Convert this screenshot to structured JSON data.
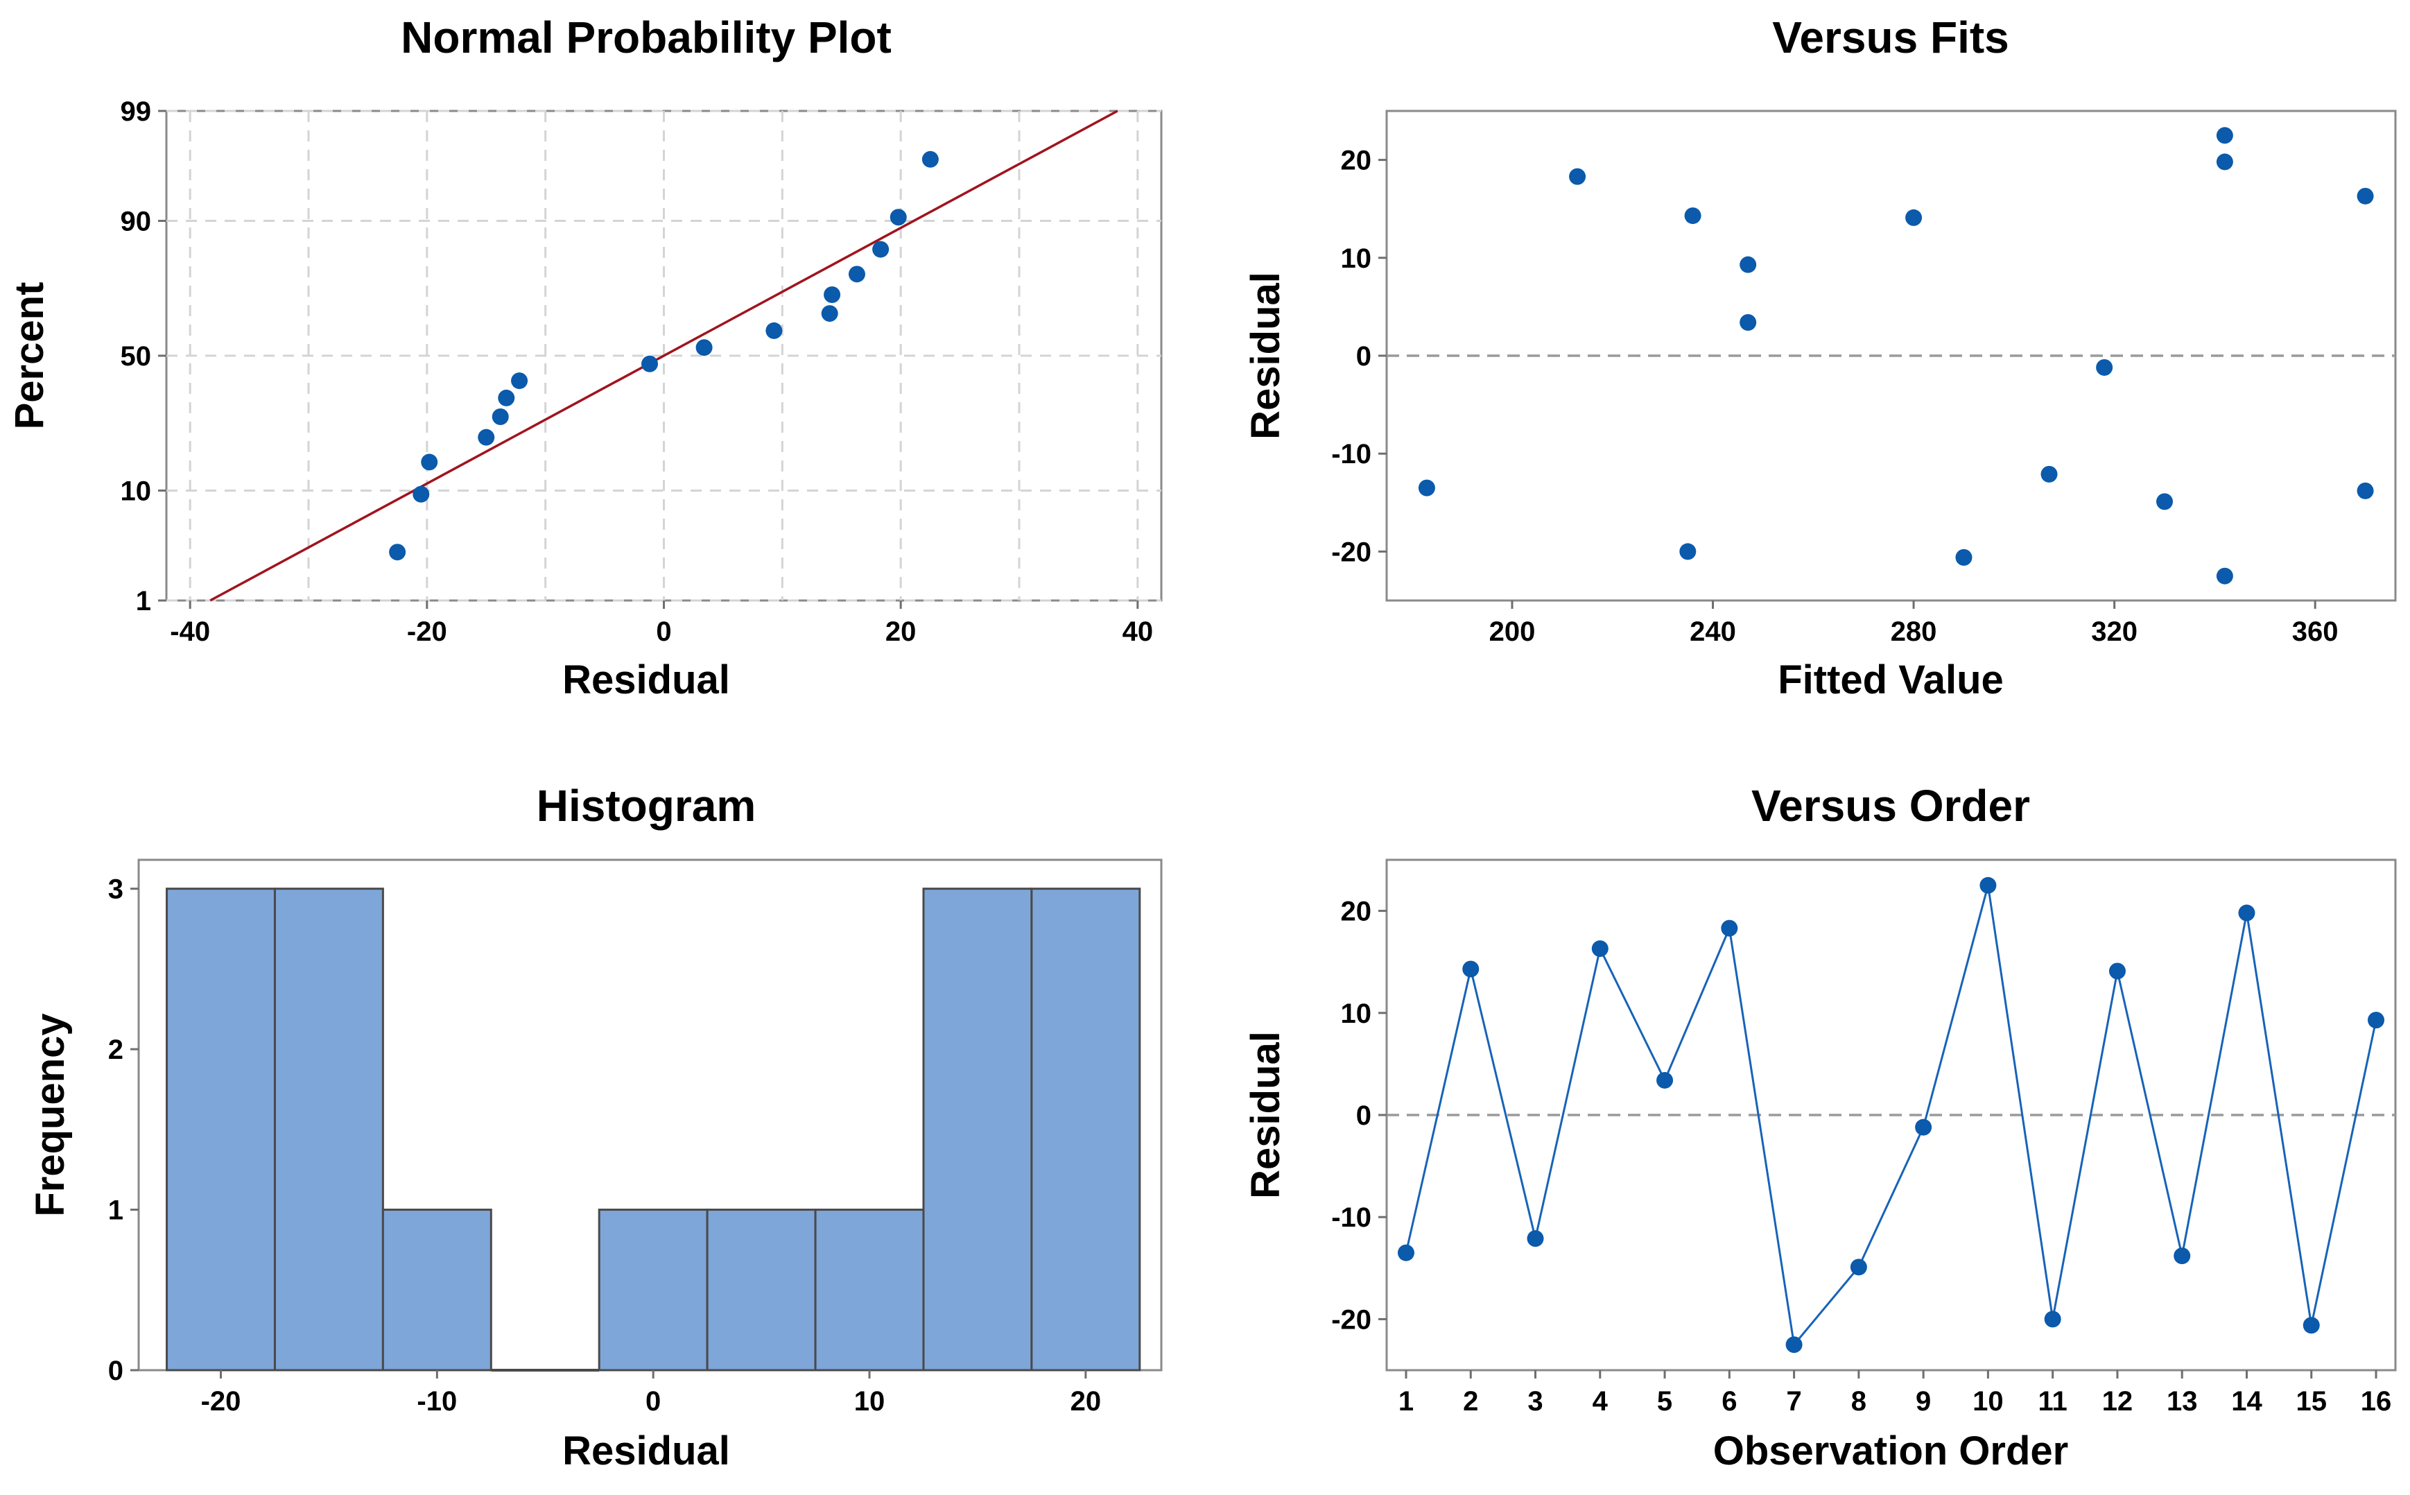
{
  "colors": {
    "point": "#0b5aab",
    "fit_line": "#a0141e",
    "order_line": "#1763b8",
    "bar": "#7ea6d9"
  },
  "chart_data": [
    {
      "type": "scatter",
      "title": "Normal Probability Plot",
      "xlabel": "Residual",
      "ylabel": "Percent",
      "xlim": [
        -42,
        42
      ],
      "ylim_percent": [
        1,
        99
      ],
      "y_scale": "normal-probability",
      "xticks": [
        -40,
        -20,
        0,
        20,
        40
      ],
      "xtick_labels": [
        "-40",
        "-20",
        "0",
        "20",
        "40"
      ],
      "xgrid": [
        -40,
        -30,
        -20,
        -10,
        0,
        10,
        20,
        30,
        40
      ],
      "yticks": [
        1,
        10,
        50,
        90,
        99
      ],
      "ytick_labels": [
        "1",
        "10",
        "50",
        "90",
        "99"
      ],
      "grid": true,
      "fit_line": {
        "x": [
          -38.3,
          38.3
        ],
        "percent": [
          1,
          99
        ]
      },
      "points": [
        {
          "x": -22.5,
          "percent": 3.1
        },
        {
          "x": -20.5,
          "percent": 9.4
        },
        {
          "x": -19.8,
          "percent": 15.6
        },
        {
          "x": -15.0,
          "percent": 21.9
        },
        {
          "x": -13.8,
          "percent": 28.1
        },
        {
          "x": -13.3,
          "percent": 34.4
        },
        {
          "x": -12.2,
          "percent": 40.6
        },
        {
          "x": -1.2,
          "percent": 46.9
        },
        {
          "x": 3.4,
          "percent": 53.1
        },
        {
          "x": 9.3,
          "percent": 59.4
        },
        {
          "x": 14.0,
          "percent": 65.6
        },
        {
          "x": 14.2,
          "percent": 71.9
        },
        {
          "x": 16.3,
          "percent": 78.1
        },
        {
          "x": 18.3,
          "percent": 84.4
        },
        {
          "x": 19.8,
          "percent": 90.6
        },
        {
          "x": 22.5,
          "percent": 96.9
        }
      ]
    },
    {
      "type": "scatter",
      "title": "Versus Fits",
      "xlabel": "Fitted Value",
      "ylabel": "Residual",
      "xlim": [
        175,
        376
      ],
      "ylim": [
        -25,
        25
      ],
      "xticks": [
        200,
        240,
        280,
        320,
        360
      ],
      "xtick_labels": [
        "200",
        "240",
        "280",
        "320",
        "360"
      ],
      "yticks": [
        -20,
        -10,
        0,
        10,
        20
      ],
      "ytick_labels": [
        "-20",
        "-10",
        "0",
        "10",
        "20"
      ],
      "reference_line": 0,
      "points": [
        {
          "x": 183,
          "y": -13.5
        },
        {
          "x": 213,
          "y": 18.3
        },
        {
          "x": 235,
          "y": -20.0
        },
        {
          "x": 236,
          "y": 14.3
        },
        {
          "x": 247,
          "y": 9.3
        },
        {
          "x": 247,
          "y": 3.4
        },
        {
          "x": 280,
          "y": 14.1
        },
        {
          "x": 290,
          "y": -20.6
        },
        {
          "x": 307,
          "y": -12.1
        },
        {
          "x": 318,
          "y": -1.2
        },
        {
          "x": 330,
          "y": -14.9
        },
        {
          "x": 342,
          "y": 22.5
        },
        {
          "x": 342,
          "y": 19.8
        },
        {
          "x": 342,
          "y": -22.5
        },
        {
          "x": 370,
          "y": 16.3
        },
        {
          "x": 370,
          "y": -13.8
        }
      ]
    },
    {
      "type": "bar",
      "title": "Histogram",
      "xlabel": "Residual",
      "ylabel": "Frequency",
      "xlim": [
        -23.8,
        23.5
      ],
      "ylim": [
        0,
        3.18
      ],
      "bin_width": 5,
      "bin_centers": [
        -20,
        -15,
        -10,
        -5,
        0,
        5,
        10,
        15,
        20
      ],
      "values": [
        3,
        3,
        1,
        0,
        1,
        1,
        1,
        3,
        3
      ],
      "xticks": [
        -20,
        -10,
        0,
        10,
        20
      ],
      "xtick_labels": [
        "-20",
        "-10",
        "0",
        "10",
        "20"
      ],
      "yticks": [
        0,
        1,
        2,
        3
      ],
      "ytick_labels": [
        "0",
        "1",
        "2",
        "3"
      ]
    },
    {
      "type": "line",
      "title": "Versus Order",
      "xlabel": "Observation Order",
      "ylabel": "Residual",
      "xlim": [
        0.7,
        16.3
      ],
      "ylim": [
        -25,
        25
      ],
      "x": [
        1,
        2,
        3,
        4,
        5,
        6,
        7,
        8,
        9,
        10,
        11,
        12,
        13,
        14,
        15,
        16
      ],
      "values": [
        -13.5,
        14.3,
        -12.1,
        16.3,
        3.4,
        18.3,
        -22.5,
        -14.9,
        -1.2,
        22.5,
        -20.0,
        14.1,
        -13.8,
        19.8,
        -20.6,
        9.3
      ],
      "xtick_labels": [
        "1",
        "2",
        "3",
        "4",
        "5",
        "6",
        "7",
        "8",
        "9",
        "10",
        "11",
        "12",
        "13",
        "14",
        "15",
        "16"
      ],
      "yticks": [
        -20,
        -10,
        0,
        10,
        20
      ],
      "ytick_labels": [
        "-20",
        "-10",
        "0",
        "10",
        "20"
      ],
      "reference_line": 0
    }
  ]
}
